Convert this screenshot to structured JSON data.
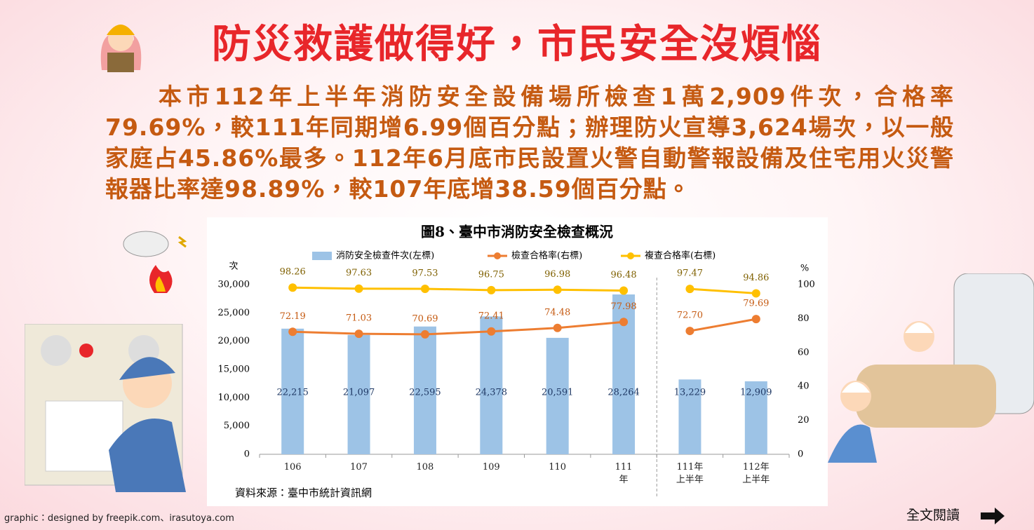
{
  "header": {
    "title": "防災救護做得好，市民安全沒煩惱"
  },
  "paragraph": "本市112年上半年消防安全設備場所檢查1萬2,909件次，合格率79.69%，較111年同期增6.99個百分點；辦理防火宣導3,624場次，以一般家庭占45.86%最多。112年6月底市民設置火警自動警報設備及住宅用火災警報器比率達98.89%，較107年底增38.59個百分點。",
  "credit": "graphic：designed by freepik.com、irasutoya.com",
  "read_more": "全文閱讀",
  "chart_data": {
    "type": "bar-line",
    "title": "圖8、臺中市消防安全檢查概況",
    "y_label": "次",
    "y2_label": "%",
    "source": "資料來源：臺中市統計資訊網",
    "categories": [
      "106",
      "107",
      "108",
      "109",
      "110",
      "111\n年",
      "111年\n上半年",
      "112年\n上半年"
    ],
    "ylim": [
      0,
      30000
    ],
    "yticks": [
      0,
      {
        "value": 5000,
        "label": "5,000"
      },
      {
        "value": 10000,
        "label": "10,000"
      },
      {
        "value": 15000,
        "label": "15,000"
      },
      {
        "value": 20000,
        "label": "20,000"
      },
      {
        "value": 25000,
        "label": "25,000"
      },
      {
        "value": 30000,
        "label": "30,000"
      }
    ],
    "y2lim": [
      0,
      100
    ],
    "y2ticks": [
      0,
      20,
      40,
      60,
      80,
      100
    ],
    "series": [
      {
        "name": "消防安全檢查件次(左標)",
        "type": "bar",
        "color": "#9dc3e6",
        "values": [
          22215,
          21097,
          22595,
          24378,
          20591,
          28264,
          13229,
          12909
        ],
        "value_labels": [
          "22,215",
          "21,097",
          "22,595",
          "24,378",
          "20,591",
          "28,264",
          "13,229",
          "12,909"
        ]
      },
      {
        "name": "檢查合格率(右標)",
        "type": "line",
        "axis": "y2",
        "color": "#ed7d31",
        "values": [
          72.19,
          71.03,
          70.69,
          72.41,
          74.48,
          77.98,
          72.7,
          79.69
        ],
        "value_labels": [
          "72.19",
          "71.03",
          "70.69",
          "72.41",
          "74.48",
          "77.98",
          "72.70",
          "79.69"
        ]
      },
      {
        "name": "複查合格率(右標)",
        "type": "line",
        "axis": "y2",
        "color": "#ffc000",
        "values": [
          98.26,
          97.63,
          97.53,
          96.75,
          96.98,
          96.48,
          97.47,
          94.86
        ]
      }
    ]
  }
}
